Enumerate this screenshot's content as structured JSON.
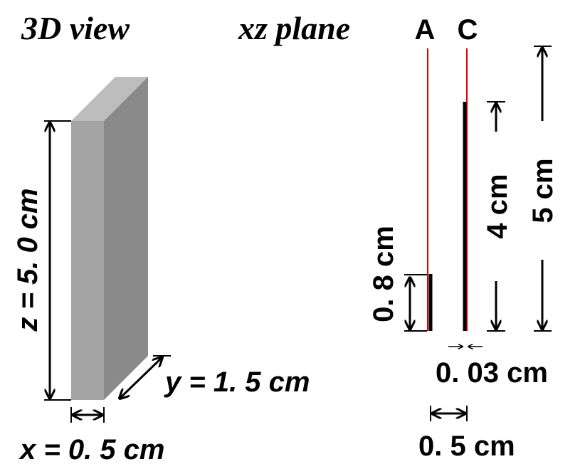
{
  "views": {
    "left_title": "3D view",
    "right_title": "xz plane"
  },
  "labels": {
    "a": "A",
    "c": "C",
    "z": "z = 5. 0 cm",
    "y": "y = 1. 5 cm",
    "x": "x = 0. 5 cm",
    "anode_height": "0. 8 cm",
    "cathode_height": "4 cm",
    "total_height": "5 cm",
    "thickness": "0. 03 cm",
    "gap": "0. 5 cm"
  }
}
